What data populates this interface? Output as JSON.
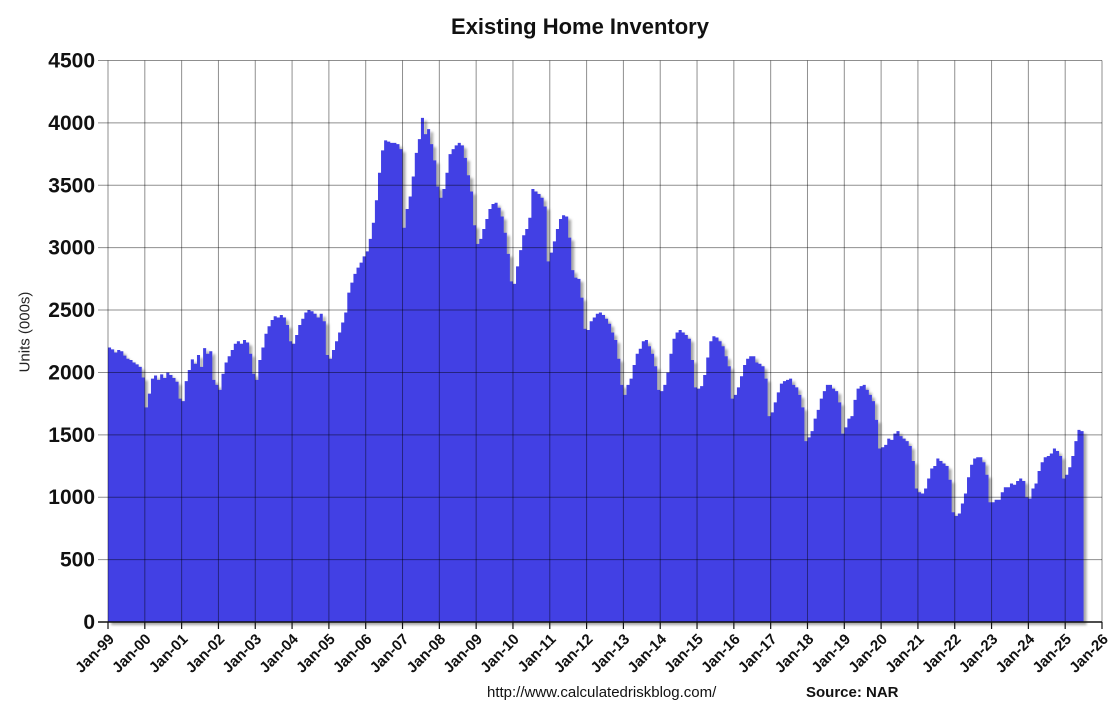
{
  "page": {
    "background_color": "#ffffff"
  },
  "header": {
    "title": "Existing Home Inventory"
  },
  "footer": {
    "url": "http://www.calculatedriskblog.com/",
    "source": "Source: NAR"
  },
  "chart_data": {
    "type": "bar",
    "title": "Existing Home Inventory",
    "xlabel": "",
    "ylabel": "Units (000s)",
    "ylim": [
      0,
      4500
    ],
    "y_ticks": [
      0,
      500,
      1000,
      1500,
      2000,
      2500,
      3000,
      3500,
      4000,
      4500
    ],
    "x_tick_labels": [
      "Jan-99",
      "Jan-00",
      "Jan-01",
      "Jan-02",
      "Jan-03",
      "Jan-04",
      "Jan-05",
      "Jan-06",
      "Jan-07",
      "Jan-08",
      "Jan-09",
      "Jan-10",
      "Jan-11",
      "Jan-12",
      "Jan-13",
      "Jan-14",
      "Jan-15",
      "Jan-16",
      "Jan-17",
      "Jan-18",
      "Jan-19",
      "Jan-20",
      "Jan-21",
      "Jan-22",
      "Jan-23",
      "Jan-24",
      "Jan-25",
      "Jan-26"
    ],
    "grid": true,
    "legend": false,
    "bar_color": "#4341e4",
    "gridline_color_over_white": "#8f8f8f",
    "axis_color": "#111111",
    "units": "thousands of homes, monthly, not seasonally adjusted",
    "x_start": "1999-01",
    "x_end": "2025-06",
    "x_axis_extends_to": "2026-01",
    "series": [
      {
        "name": "Existing Home Inventory",
        "monthly_values": [
          2200,
          2185,
          2160,
          2180,
          2170,
          2135,
          2110,
          2100,
          2080,
          2065,
          2045,
          1960,
          1720,
          1830,
          1950,
          1975,
          1940,
          1985,
          1955,
          2000,
          1980,
          1955,
          1925,
          1790,
          1770,
          1930,
          2020,
          2105,
          2070,
          2140,
          2045,
          2195,
          2150,
          2170,
          1940,
          1900,
          1860,
          1990,
          2080,
          2130,
          2180,
          2230,
          2250,
          2230,
          2260,
          2240,
          2150,
          1990,
          1940,
          2100,
          2200,
          2310,
          2370,
          2420,
          2450,
          2440,
          2460,
          2440,
          2380,
          2250,
          2230,
          2300,
          2380,
          2430,
          2480,
          2500,
          2490,
          2470,
          2440,
          2470,
          2410,
          2140,
          2110,
          2180,
          2250,
          2320,
          2400,
          2480,
          2640,
          2720,
          2790,
          2840,
          2880,
          2930,
          2970,
          3070,
          3200,
          3380,
          3600,
          3780,
          3860,
          3850,
          3840,
          3840,
          3830,
          3790,
          3160,
          3310,
          3410,
          3570,
          3760,
          3870,
          4040,
          3910,
          3950,
          3830,
          3700,
          3490,
          3400,
          3470,
          3600,
          3750,
          3790,
          3820,
          3840,
          3820,
          3720,
          3580,
          3450,
          3180,
          3030,
          3070,
          3150,
          3230,
          3310,
          3350,
          3360,
          3320,
          3250,
          3120,
          2950,
          2730,
          2710,
          2850,
          2980,
          3100,
          3150,
          3240,
          3470,
          3450,
          3430,
          3400,
          3330,
          2890,
          2960,
          3050,
          3150,
          3230,
          3260,
          3250,
          3080,
          2820,
          2760,
          2750,
          2600,
          2350,
          2340,
          2410,
          2440,
          2470,
          2480,
          2460,
          2430,
          2390,
          2320,
          2260,
          2110,
          1900,
          1820,
          1900,
          1950,
          2060,
          2150,
          2190,
          2250,
          2260,
          2210,
          2150,
          2050,
          1860,
          1850,
          1900,
          2000,
          2150,
          2270,
          2320,
          2340,
          2320,
          2300,
          2270,
          2100,
          1880,
          1870,
          1890,
          1980,
          2120,
          2250,
          2290,
          2280,
          2250,
          2210,
          2130,
          2050,
          1790,
          1820,
          1880,
          1970,
          2060,
          2110,
          2130,
          2130,
          2080,
          2070,
          2050,
          1950,
          1650,
          1680,
          1760,
          1840,
          1910,
          1930,
          1940,
          1950,
          1900,
          1880,
          1820,
          1720,
          1450,
          1480,
          1530,
          1630,
          1700,
          1790,
          1850,
          1900,
          1900,
          1870,
          1850,
          1760,
          1510,
          1560,
          1630,
          1650,
          1780,
          1870,
          1890,
          1900,
          1860,
          1820,
          1770,
          1620,
          1390,
          1400,
          1420,
          1470,
          1460,
          1510,
          1530,
          1490,
          1470,
          1450,
          1410,
          1290,
          1070,
          1040,
          1030,
          1070,
          1150,
          1230,
          1250,
          1310,
          1290,
          1270,
          1250,
          1140,
          880,
          850,
          870,
          950,
          1030,
          1160,
          1260,
          1310,
          1320,
          1320,
          1280,
          1180,
          960,
          960,
          980,
          980,
          1040,
          1080,
          1080,
          1110,
          1100,
          1130,
          1150,
          1130,
          1000,
          990,
          1070,
          1110,
          1210,
          1280,
          1320,
          1330,
          1350,
          1390,
          1370,
          1330,
          1150,
          1180,
          1240,
          1330,
          1450,
          1540,
          1530
        ]
      }
    ]
  }
}
